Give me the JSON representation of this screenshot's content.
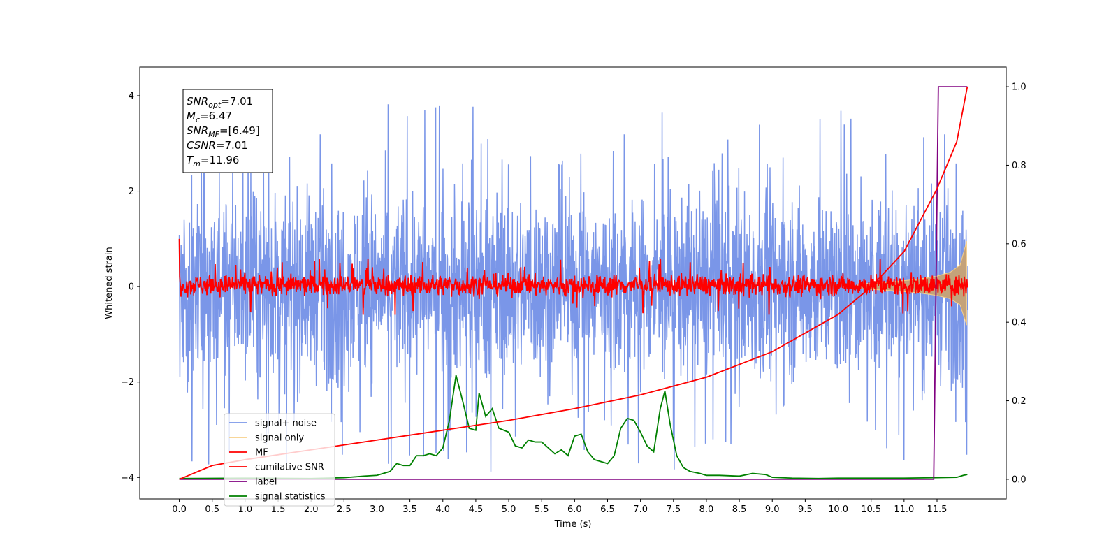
{
  "chart_data": {
    "type": "line",
    "title": "",
    "xlabel": "Time (s)",
    "ylabel": "Whitened strain",
    "y2label": "",
    "xlim": [
      -0.6,
      12.55
    ],
    "ylim": [
      -4.45,
      4.6
    ],
    "y2lim": [
      -0.05,
      1.05
    ],
    "x_ticks": [
      "0.0",
      "0.5",
      "1.0",
      "1.5",
      "2.0",
      "2.5",
      "3.0",
      "3.5",
      "4.0",
      "4.5",
      "5.0",
      "5.5",
      "6.0",
      "6.5",
      "7.0",
      "7.5",
      "8.0",
      "8.5",
      "9.0",
      "9.5",
      "10.0",
      "10.5",
      "11.0",
      "11.5"
    ],
    "y_ticks": [
      "−4",
      "−2",
      "0",
      "2",
      "4"
    ],
    "y2_ticks": [
      "0.0",
      "0.2",
      "0.4",
      "0.6",
      "0.8",
      "1.0"
    ],
    "grid": false,
    "legend_position": "lower-left",
    "annotation": {
      "lines": [
        {
          "base": "SNR",
          "sub": "opt",
          "value": "=7.01"
        },
        {
          "base": "M",
          "sub": "c",
          "value": "=6.47"
        },
        {
          "base": "SNR",
          "sub": "MF",
          "value": "=[6.49]"
        },
        {
          "base": "CSNR",
          "sub": "",
          "value": "=7.01"
        },
        {
          "base": "T",
          "sub": "m",
          "value": "=11.96"
        }
      ]
    },
    "series": [
      {
        "name": "signal+ noise",
        "axis": "left",
        "color": "#7a96e8",
        "description": "noise-dominated, amplitude approx ±2 with spikes to about ±4"
      },
      {
        "name": "signal only",
        "axis": "left",
        "color": "#f7d08a",
        "envelope_x": [
          10.3,
          10.8,
          11.2,
          11.5,
          11.7,
          11.85,
          11.95
        ],
        "envelope_y": [
          0.05,
          0.1,
          0.15,
          0.22,
          0.3,
          0.45,
          0.95
        ]
      },
      {
        "name": "MF",
        "axis": "left",
        "color": "#ff0000",
        "description": "matched-filter output, approx ±0.3 with peaks to about 0.6; 1.0 at t=0"
      },
      {
        "name": "cumilative SNR",
        "axis": "right",
        "color": "#ff0000",
        "x": [
          0,
          0.5,
          1,
          2,
          3,
          4,
          5,
          6,
          7,
          8,
          9,
          10,
          10.5,
          11,
          11.5,
          11.8,
          11.96
        ],
        "y": [
          0.0,
          0.035,
          0.05,
          0.075,
          0.1,
          0.125,
          0.15,
          0.18,
          0.215,
          0.26,
          0.325,
          0.42,
          0.49,
          0.58,
          0.74,
          0.86,
          1.0
        ]
      },
      {
        "name": "label",
        "axis": "right",
        "color": "#800080",
        "x": [
          0,
          11.45,
          11.52,
          11.96
        ],
        "y": [
          0,
          0,
          1,
          1
        ]
      },
      {
        "name": "signal statistics",
        "axis": "right",
        "color": "#008000",
        "x": [
          0,
          1,
          2,
          2.5,
          2.8,
          3.0,
          3.2,
          3.3,
          3.4,
          3.5,
          3.6,
          3.7,
          3.8,
          3.9,
          4.0,
          4.1,
          4.2,
          4.3,
          4.4,
          4.5,
          4.55,
          4.65,
          4.75,
          4.85,
          5.0,
          5.1,
          5.2,
          5.3,
          5.4,
          5.5,
          5.6,
          5.7,
          5.8,
          5.9,
          6.0,
          6.1,
          6.2,
          6.3,
          6.4,
          6.5,
          6.6,
          6.7,
          6.8,
          6.9,
          7.0,
          7.1,
          7.2,
          7.3,
          7.37,
          7.45,
          7.55,
          7.65,
          7.75,
          7.9,
          8.0,
          8.2,
          8.5,
          8.7,
          8.9,
          9.0,
          9.3,
          9.7,
          10.0,
          10.5,
          11.0,
          11.5,
          11.8,
          11.9,
          11.96
        ],
        "y": [
          0.002,
          0.003,
          0.002,
          0.004,
          0.008,
          0.01,
          0.02,
          0.04,
          0.035,
          0.035,
          0.06,
          0.06,
          0.065,
          0.06,
          0.08,
          0.15,
          0.265,
          0.2,
          0.13,
          0.125,
          0.22,
          0.16,
          0.18,
          0.13,
          0.12,
          0.085,
          0.08,
          0.1,
          0.095,
          0.095,
          0.08,
          0.065,
          0.075,
          0.06,
          0.11,
          0.115,
          0.07,
          0.05,
          0.045,
          0.04,
          0.06,
          0.13,
          0.155,
          0.15,
          0.12,
          0.085,
          0.07,
          0.18,
          0.225,
          0.14,
          0.06,
          0.03,
          0.02,
          0.015,
          0.01,
          0.01,
          0.008,
          0.015,
          0.012,
          0.005,
          0.003,
          0.002,
          0.003,
          0.003,
          0.003,
          0.004,
          0.005,
          0.01,
          0.012
        ]
      }
    ]
  }
}
